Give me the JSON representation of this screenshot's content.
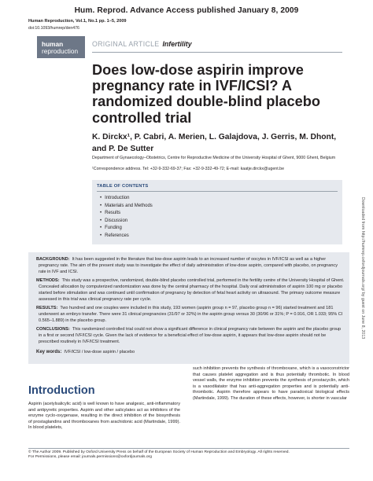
{
  "banner": "Hum. Reprod. Advance Access published January 8, 2009",
  "journal_citation": "Human Reproduction, Vol.1, No.1 pp. 1–5, 2009",
  "doi": "doi:10.1093/humrep/den476",
  "logo": {
    "line1": "human",
    "line2": "reproduction"
  },
  "article_type": {
    "label": "ORIGINAL ARTICLE",
    "category": "Infertility"
  },
  "title": "Does low-dose aspirin improve pregnancy rate in IVF/ICSI? A randomized double-blind placebo controlled trial",
  "authors": "K. Dirckx¹, P. Cabri, A. Merien, L. Galajdova, J. Gerris, M. Dhont, and P. De Sutter",
  "affiliation": "Department of Gynaecology–Obstetrics, Centre for Reproductive Medicine of the University Hospital of Ghent, 9000 Ghent, Belgium",
  "correspondence": "¹Correspondence address. Tel: +32-9-332-69-37; Fax: +32-9-332-49-72; E-mail: kaatje.dirckx@ugent.be",
  "toc": {
    "title": "TABLE OF CONTENTS",
    "items": [
      "Introduction",
      "Materials and Methods",
      "Results",
      "Discussion",
      "Funding",
      "References"
    ]
  },
  "side_note": "Downloaded from http://humrep.oxfordjournals.org/ by guest on June 8, 2013",
  "abstract": {
    "background_label": "BACKGROUND:",
    "background_text": "It has been suggested in the literature that low-dose aspirin leads to an increased number of oocytes in IVF/ICSI as well as a higher pregnancy rate. The aim of the present study was to investigate the effect of daily administration of low-dose aspirin, compared with placebo, on pregnancy rate in IVF and ICSI.",
    "methods_label": "METHODS:",
    "methods_text": "This study was a prospective, randomized, double-blind placebo controlled trial, performed in the fertility centre of the University Hospital of Ghent. Concealed allocation by computerized randomization was done by the central pharmacy of the hospital. Daily oral administration of aspirin 100 mg or placebo started before stimulation and was continued until confirmation of pregnancy by detection of fetal heart activity on ultrasound. The primary outcome measure assessed in this trial was clinical pregnancy rate per cycle.",
    "results_label": "RESULTS:",
    "results_text": "Two hundred and one couples were included in this study, 193 women (aspirin group n = 97, placebo group n = 96) started treatment and 181 underwent an embryo transfer. There were 31 clinical pregnancies (31/97 or 32%) in the aspirin group versus 30 (30/96 or 31%; P = 0.916, OR 1.033; 95% CI 0.565–1.889) in the placebo group.",
    "conclusions_label": "CONCLUSIONS:",
    "conclusions_text": "This randomized controlled trial could not show a significant difference in clinical pregnancy rate between the aspirin and the placebo group in a first or second IVF/ICSI cycle. Given the lack of evidence for a beneficial effect of low-dose aspirin, it appears that low-dose aspirin should not be prescribed routinely in IVF/ICSI treatment.",
    "keywords_label": "Key words:",
    "keywords_text": "IVF/ICSI / low-dose aspirin / placebo"
  },
  "intro": {
    "heading": "Introduction",
    "col1": "Aspirin (acetylsalicylic acid) is well known to have analgesic, anti-inflammatory and antipyretic properties. Aspirin and other salicylates act as inhibitors of the enzyme cyclo-oxygenase, resulting in the direct inhibition of the biosynthesis of prostaglandins and thromboxanes from arachidonic acid (Martindale, 1999). In blood platelets,",
    "col2": "such inhibition prevents the synthesis of thromboxane, which is a vasoconstrictor that causes platelet aggregation and is thus potentially thrombotic. In blood vessel walls, the enzyme inhibition prevents the synthesis of prostacyclin, which is a vasodilatator that has anti-aggregation properties and is potentially anti-thrombotic. Aspirin therefore appears to have paradoxical biological effects (Martindale, 1999). The duration of these effects, however, is shorter in vascular"
  },
  "footer": {
    "line1": "© The Author 2009. Published by Oxford University Press on behalf of the European Society of Human Reproduction and Embryology. All rights reserved.",
    "line2": "For Permissions, please email: journals.permissions@oxfordjournals.org"
  }
}
